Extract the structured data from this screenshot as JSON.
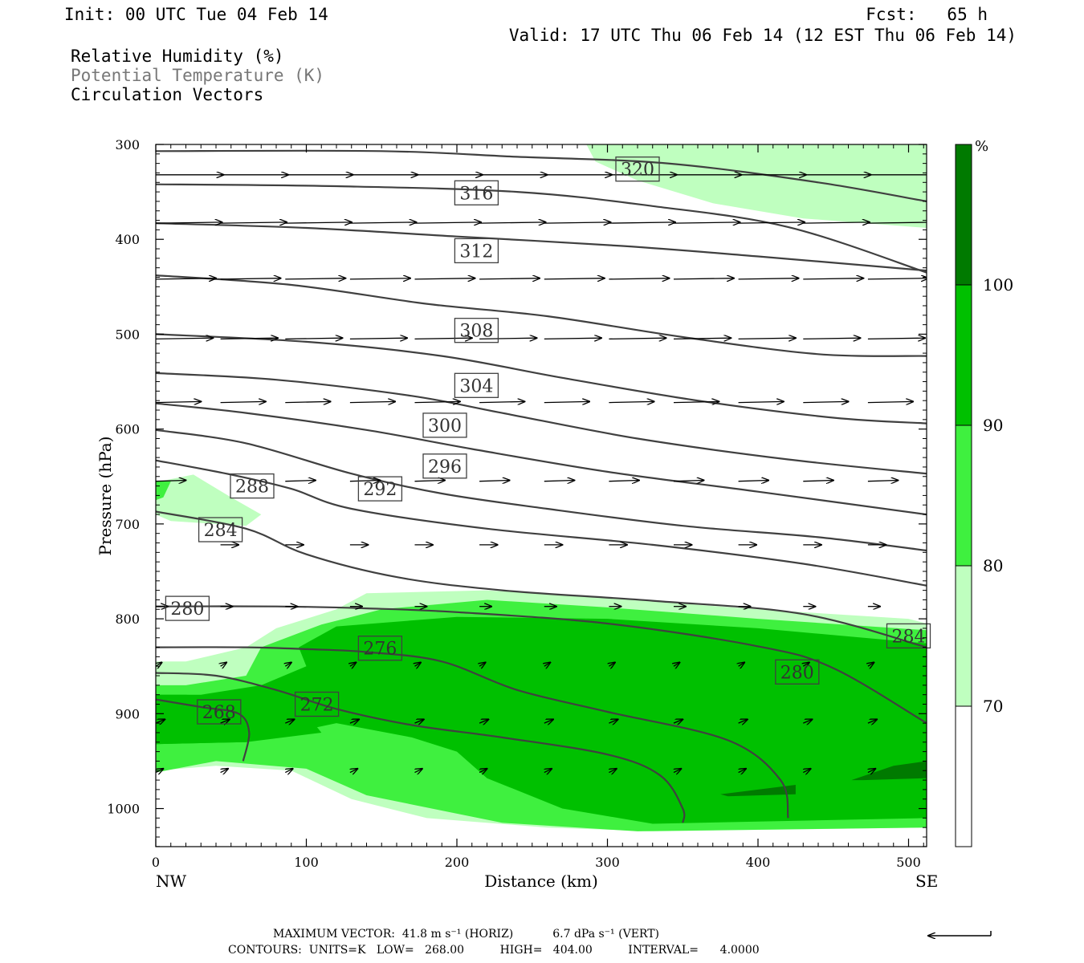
{
  "header": {
    "init": "Init: 00 UTC Tue 04 Feb 14",
    "fcst": "Fcst:   65 h",
    "valid": "Valid: 17 UTC Thu 06 Feb 14 (12 EST Thu 06 Feb 14)"
  },
  "legend": {
    "rh": "Relative Humidity (%)",
    "theta": "Potential Temperature (K)",
    "vectors": "Circulation Vectors"
  },
  "footer": {
    "max_vector": "MAXIMUM VECTOR:  41.8 m s⁻¹ (HORIZ)           6.7 dPa s⁻¹ (VERT)",
    "contours": "CONTOURS:  UNITS=K   LOW=   268.00          HIGH=   404.00          INTERVAL=      4.0000"
  },
  "colors": {
    "rh70": "#bfffbf",
    "rh80": "#3ff03f",
    "rh90": "#00c000",
    "rh100": "#007a00",
    "contour": "#404040"
  },
  "chart_data": {
    "type": "cross-section",
    "xlabel": "Distance (km)",
    "ylabel": "Pressure (hPa)",
    "xlim": [
      0,
      512
    ],
    "ylim": [
      1040,
      300
    ],
    "xticks": [
      0,
      100,
      200,
      300,
      400,
      500
    ],
    "xtick_labels": [
      "0",
      "100",
      "200",
      "300",
      "400",
      "500"
    ],
    "yticks": [
      300,
      400,
      500,
      600,
      700,
      800,
      900,
      1000
    ],
    "ytick_labels": [
      "300",
      "400",
      "500",
      "600",
      "700",
      "800",
      "900",
      "1000"
    ],
    "left_end_label": "NW",
    "right_end_label": "SE",
    "colorbar": {
      "unit": "%",
      "levels": [
        70,
        80,
        90,
        100
      ],
      "level_labels": [
        "70",
        "80",
        "90",
        "100"
      ]
    },
    "theta_contours": [
      {
        "value": 268,
        "label": "268",
        "points": [
          [
            0,
            885
          ],
          [
            30,
            893
          ],
          [
            55,
            900
          ],
          [
            62,
            920
          ],
          [
            58,
            950
          ]
        ]
      },
      {
        "value": 272,
        "label": "272",
        "points": [
          [
            0,
            857
          ],
          [
            40,
            860
          ],
          [
            80,
            875
          ],
          [
            120,
            895
          ],
          [
            170,
            912
          ],
          [
            230,
            925
          ],
          [
            300,
            943
          ],
          [
            335,
            965
          ],
          [
            350,
            1000
          ],
          [
            350,
            1015
          ]
        ]
      },
      {
        "value": 276,
        "label": "276",
        "points": [
          [
            0,
            830
          ],
          [
            60,
            830
          ],
          [
            100,
            832
          ],
          [
            140,
            835
          ],
          [
            190,
            845
          ],
          [
            240,
            875
          ],
          [
            300,
            898
          ],
          [
            380,
            928
          ],
          [
            415,
            970
          ],
          [
            420,
            1010
          ]
        ]
      },
      {
        "value": 280,
        "label": "280",
        "points": [
          [
            0,
            787
          ],
          [
            80,
            787
          ],
          [
            140,
            789
          ],
          [
            200,
            793
          ],
          [
            300,
            805
          ],
          [
            400,
            829
          ],
          [
            450,
            852
          ],
          [
            512,
            910
          ]
        ]
      },
      {
        "value": 284,
        "label": "284",
        "points": [
          [
            0,
            687
          ],
          [
            60,
            705
          ],
          [
            100,
            732
          ],
          [
            160,
            756
          ],
          [
            230,
            770
          ],
          [
            330,
            781
          ],
          [
            430,
            795
          ],
          [
            512,
            830
          ]
        ]
      },
      {
        "value": 288,
        "label": "288",
        "points": [
          [
            0,
            633
          ],
          [
            50,
            648
          ],
          [
            90,
            663
          ],
          [
            130,
            684
          ],
          [
            220,
            705
          ],
          [
            330,
            722
          ],
          [
            430,
            742
          ],
          [
            512,
            765
          ]
        ]
      },
      {
        "value": 292,
        "label": "292",
        "points": [
          [
            0,
            601
          ],
          [
            60,
            615
          ],
          [
            130,
            647
          ],
          [
            190,
            668
          ],
          [
            260,
            684
          ],
          [
            350,
            702
          ],
          [
            440,
            714
          ],
          [
            512,
            728
          ]
        ]
      },
      {
        "value": 296,
        "label": "296",
        "points": [
          [
            0,
            573
          ],
          [
            60,
            583
          ],
          [
            140,
            601
          ],
          [
            210,
            621
          ],
          [
            300,
            645
          ],
          [
            400,
            666
          ],
          [
            512,
            690
          ]
        ]
      },
      {
        "value": 300,
        "label": "300",
        "points": [
          [
            0,
            541
          ],
          [
            80,
            548
          ],
          [
            170,
            565
          ],
          [
            230,
            583
          ],
          [
            320,
            610
          ],
          [
            420,
            632
          ],
          [
            512,
            647
          ]
        ]
      },
      {
        "value": 304,
        "label": "304",
        "points": [
          [
            0,
            500
          ],
          [
            100,
            508
          ],
          [
            190,
            523
          ],
          [
            270,
            546
          ],
          [
            360,
            570
          ],
          [
            450,
            588
          ],
          [
            512,
            594
          ]
        ]
      },
      {
        "value": 308,
        "label": "308",
        "points": [
          [
            0,
            438
          ],
          [
            90,
            448
          ],
          [
            180,
            468
          ],
          [
            260,
            481
          ],
          [
            350,
            503
          ],
          [
            440,
            521
          ],
          [
            512,
            523
          ]
        ]
      },
      {
        "value": 312,
        "label": "312",
        "points": [
          [
            0,
            383
          ],
          [
            100,
            388
          ],
          [
            200,
            397
          ],
          [
            310,
            407
          ],
          [
            400,
            418
          ],
          [
            512,
            433
          ]
        ]
      },
      {
        "value": 316,
        "label": "316",
        "points": [
          [
            0,
            342
          ],
          [
            120,
            344
          ],
          [
            240,
            350
          ],
          [
            330,
            365
          ],
          [
            420,
            387
          ],
          [
            512,
            435
          ]
        ]
      },
      {
        "value": 320,
        "label": "320",
        "points": [
          [
            0,
            307
          ],
          [
            150,
            307
          ],
          [
            240,
            313
          ],
          [
            340,
            320
          ],
          [
            440,
            340
          ],
          [
            512,
            360
          ]
        ]
      }
    ],
    "contour_labels": [
      {
        "text": "268",
        "x": 42,
        "p": 898
      },
      {
        "text": "272",
        "x": 107,
        "p": 890
      },
      {
        "text": "276",
        "x": 149,
        "p": 831
      },
      {
        "text": "280",
        "x": 21,
        "p": 789
      },
      {
        "text": "280",
        "x": 426,
        "p": 856
      },
      {
        "text": "284",
        "x": 43,
        "p": 706
      },
      {
        "text": "284",
        "x": 500,
        "p": 818
      },
      {
        "text": "288",
        "x": 64,
        "p": 660
      },
      {
        "text": "292",
        "x": 149,
        "p": 663
      },
      {
        "text": "296",
        "x": 192,
        "p": 639
      },
      {
        "text": "300",
        "x": 192,
        "p": 596
      },
      {
        "text": "304",
        "x": 213,
        "p": 554
      },
      {
        "text": "308",
        "x": 213,
        "p": 496
      },
      {
        "text": "312",
        "x": 213,
        "p": 412
      },
      {
        "text": "316",
        "x": 213,
        "p": 351
      },
      {
        "text": "320",
        "x": 320,
        "p": 326
      }
    ],
    "rh_regions": [
      {
        "level": 70,
        "points": [
          [
            0,
            1040
          ],
          [
            0,
            960
          ],
          [
            40,
            955
          ],
          [
            90,
            960
          ],
          [
            130,
            990
          ],
          [
            180,
            1010
          ],
          [
            260,
            1020
          ],
          [
            330,
            1024
          ],
          [
            512,
            1020
          ],
          [
            512,
            805
          ],
          [
            500,
            800
          ],
          [
            400,
            790
          ],
          [
            300,
            778
          ],
          [
            220,
            770
          ],
          [
            140,
            773
          ],
          [
            120,
            790
          ],
          [
            80,
            810
          ],
          [
            60,
            830
          ],
          [
            20,
            845
          ],
          [
            0,
            845
          ]
        ]
      },
      {
        "level": 70,
        "points": [
          [
            0,
            656
          ],
          [
            25,
            648
          ],
          [
            50,
            672
          ],
          [
            70,
            690
          ],
          [
            60,
            702
          ],
          [
            10,
            697
          ],
          [
            0,
            690
          ]
        ]
      },
      {
        "level": 70,
        "points": [
          [
            286,
            300
          ],
          [
            512,
            300
          ],
          [
            512,
            388
          ],
          [
            430,
            378
          ],
          [
            370,
            362
          ],
          [
            320,
            338
          ],
          [
            292,
            318
          ]
        ]
      },
      {
        "level": 80,
        "points": [
          [
            0,
            962
          ],
          [
            40,
            950
          ],
          [
            100,
            958
          ],
          [
            140,
            986
          ],
          [
            230,
            1015
          ],
          [
            320,
            1024
          ],
          [
            512,
            1020
          ],
          [
            512,
            812
          ],
          [
            400,
            800
          ],
          [
            300,
            788
          ],
          [
            220,
            780
          ],
          [
            150,
            790
          ],
          [
            110,
            806
          ],
          [
            70,
            830
          ],
          [
            60,
            860
          ],
          [
            20,
            870
          ],
          [
            0,
            870
          ]
        ]
      },
      {
        "level": 80,
        "points": [
          [
            0,
            655
          ],
          [
            10,
            655
          ],
          [
            5,
            672
          ],
          [
            0,
            675
          ]
        ]
      },
      {
        "level": 90,
        "points": [
          [
            0,
            932
          ],
          [
            60,
            930
          ],
          [
            120,
            910
          ],
          [
            170,
            925
          ],
          [
            200,
            940
          ],
          [
            220,
            968
          ],
          [
            270,
            1000
          ],
          [
            330,
            1016
          ],
          [
            512,
            1010
          ],
          [
            512,
            826
          ],
          [
            400,
            810
          ],
          [
            300,
            800
          ],
          [
            200,
            798
          ],
          [
            120,
            808
          ],
          [
            95,
            830
          ],
          [
            100,
            850
          ],
          [
            70,
            870
          ],
          [
            30,
            880
          ],
          [
            0,
            880
          ]
        ]
      },
      {
        "level": 90,
        "points": [
          [
            0,
            932
          ],
          [
            60,
            930
          ],
          [
            110,
            920
          ],
          [
            100,
            900
          ],
          [
            60,
            885
          ],
          [
            20,
            880
          ],
          [
            0,
            880
          ]
        ]
      },
      {
        "level": 100,
        "points": [
          [
            375,
            985
          ],
          [
            425,
            975
          ],
          [
            425,
            985
          ],
          [
            380,
            987
          ]
        ]
      },
      {
        "level": 100,
        "points": [
          [
            462,
            970
          ],
          [
            490,
            955
          ],
          [
            512,
            950
          ],
          [
            512,
            968
          ],
          [
            470,
            970
          ]
        ]
      }
    ],
    "vector_rows": [
      {
        "p": 332,
        "y2": 332,
        "len": 45,
        "xs": [
          0,
          43,
          86,
          129,
          172,
          215,
          258,
          301,
          344,
          387,
          430,
          473
        ]
      },
      {
        "p": 383,
        "y2": 382,
        "len": 44,
        "xs": [
          0,
          43,
          86,
          129,
          172,
          215,
          258,
          301,
          344,
          387,
          430,
          473
        ]
      },
      {
        "p": 442,
        "y2": 441,
        "len": 40,
        "xs": [
          0,
          43,
          86,
          129,
          172,
          215,
          258,
          301,
          344,
          387,
          430,
          473
        ]
      },
      {
        "p": 505,
        "y2": 504,
        "len": 38,
        "xs": [
          0,
          43,
          86,
          129,
          172,
          215,
          258,
          301,
          344,
          387,
          430,
          473
        ]
      },
      {
        "p": 572,
        "y2": 571,
        "len": 30,
        "xs": [
          0,
          43,
          86,
          129,
          172,
          215,
          258,
          301,
          344,
          387,
          430,
          473
        ]
      },
      {
        "p": 655,
        "y2": 654,
        "len": 20,
        "xs": [
          0,
          86,
          129,
          172,
          215,
          258,
          301,
          344,
          387,
          430,
          473
        ]
      },
      {
        "p": 722,
        "y2": 722,
        "len": 12,
        "xs": [
          43,
          86,
          129,
          172,
          215,
          258,
          301,
          344,
          387,
          430,
          473
        ]
      },
      {
        "p": 787,
        "y2": 787,
        "len": 8,
        "xs": [
          0,
          43,
          86,
          129,
          172,
          215,
          258,
          301,
          344,
          387,
          430,
          473
        ]
      },
      {
        "p": 850,
        "y2": 846,
        "len": 4,
        "xs": [
          0,
          43,
          86,
          129,
          172,
          215,
          258,
          301,
          344,
          387,
          430,
          473
        ]
      },
      {
        "p": 910,
        "y2": 906,
        "len": 6,
        "xs": [
          0,
          43,
          86,
          129,
          172,
          215,
          258,
          301,
          344,
          387,
          430,
          473
        ]
      },
      {
        "p": 962,
        "y2": 958,
        "len": 5,
        "xs": [
          0,
          43,
          86,
          129,
          172,
          215,
          258,
          301,
          344,
          387,
          430,
          473
        ]
      }
    ]
  }
}
